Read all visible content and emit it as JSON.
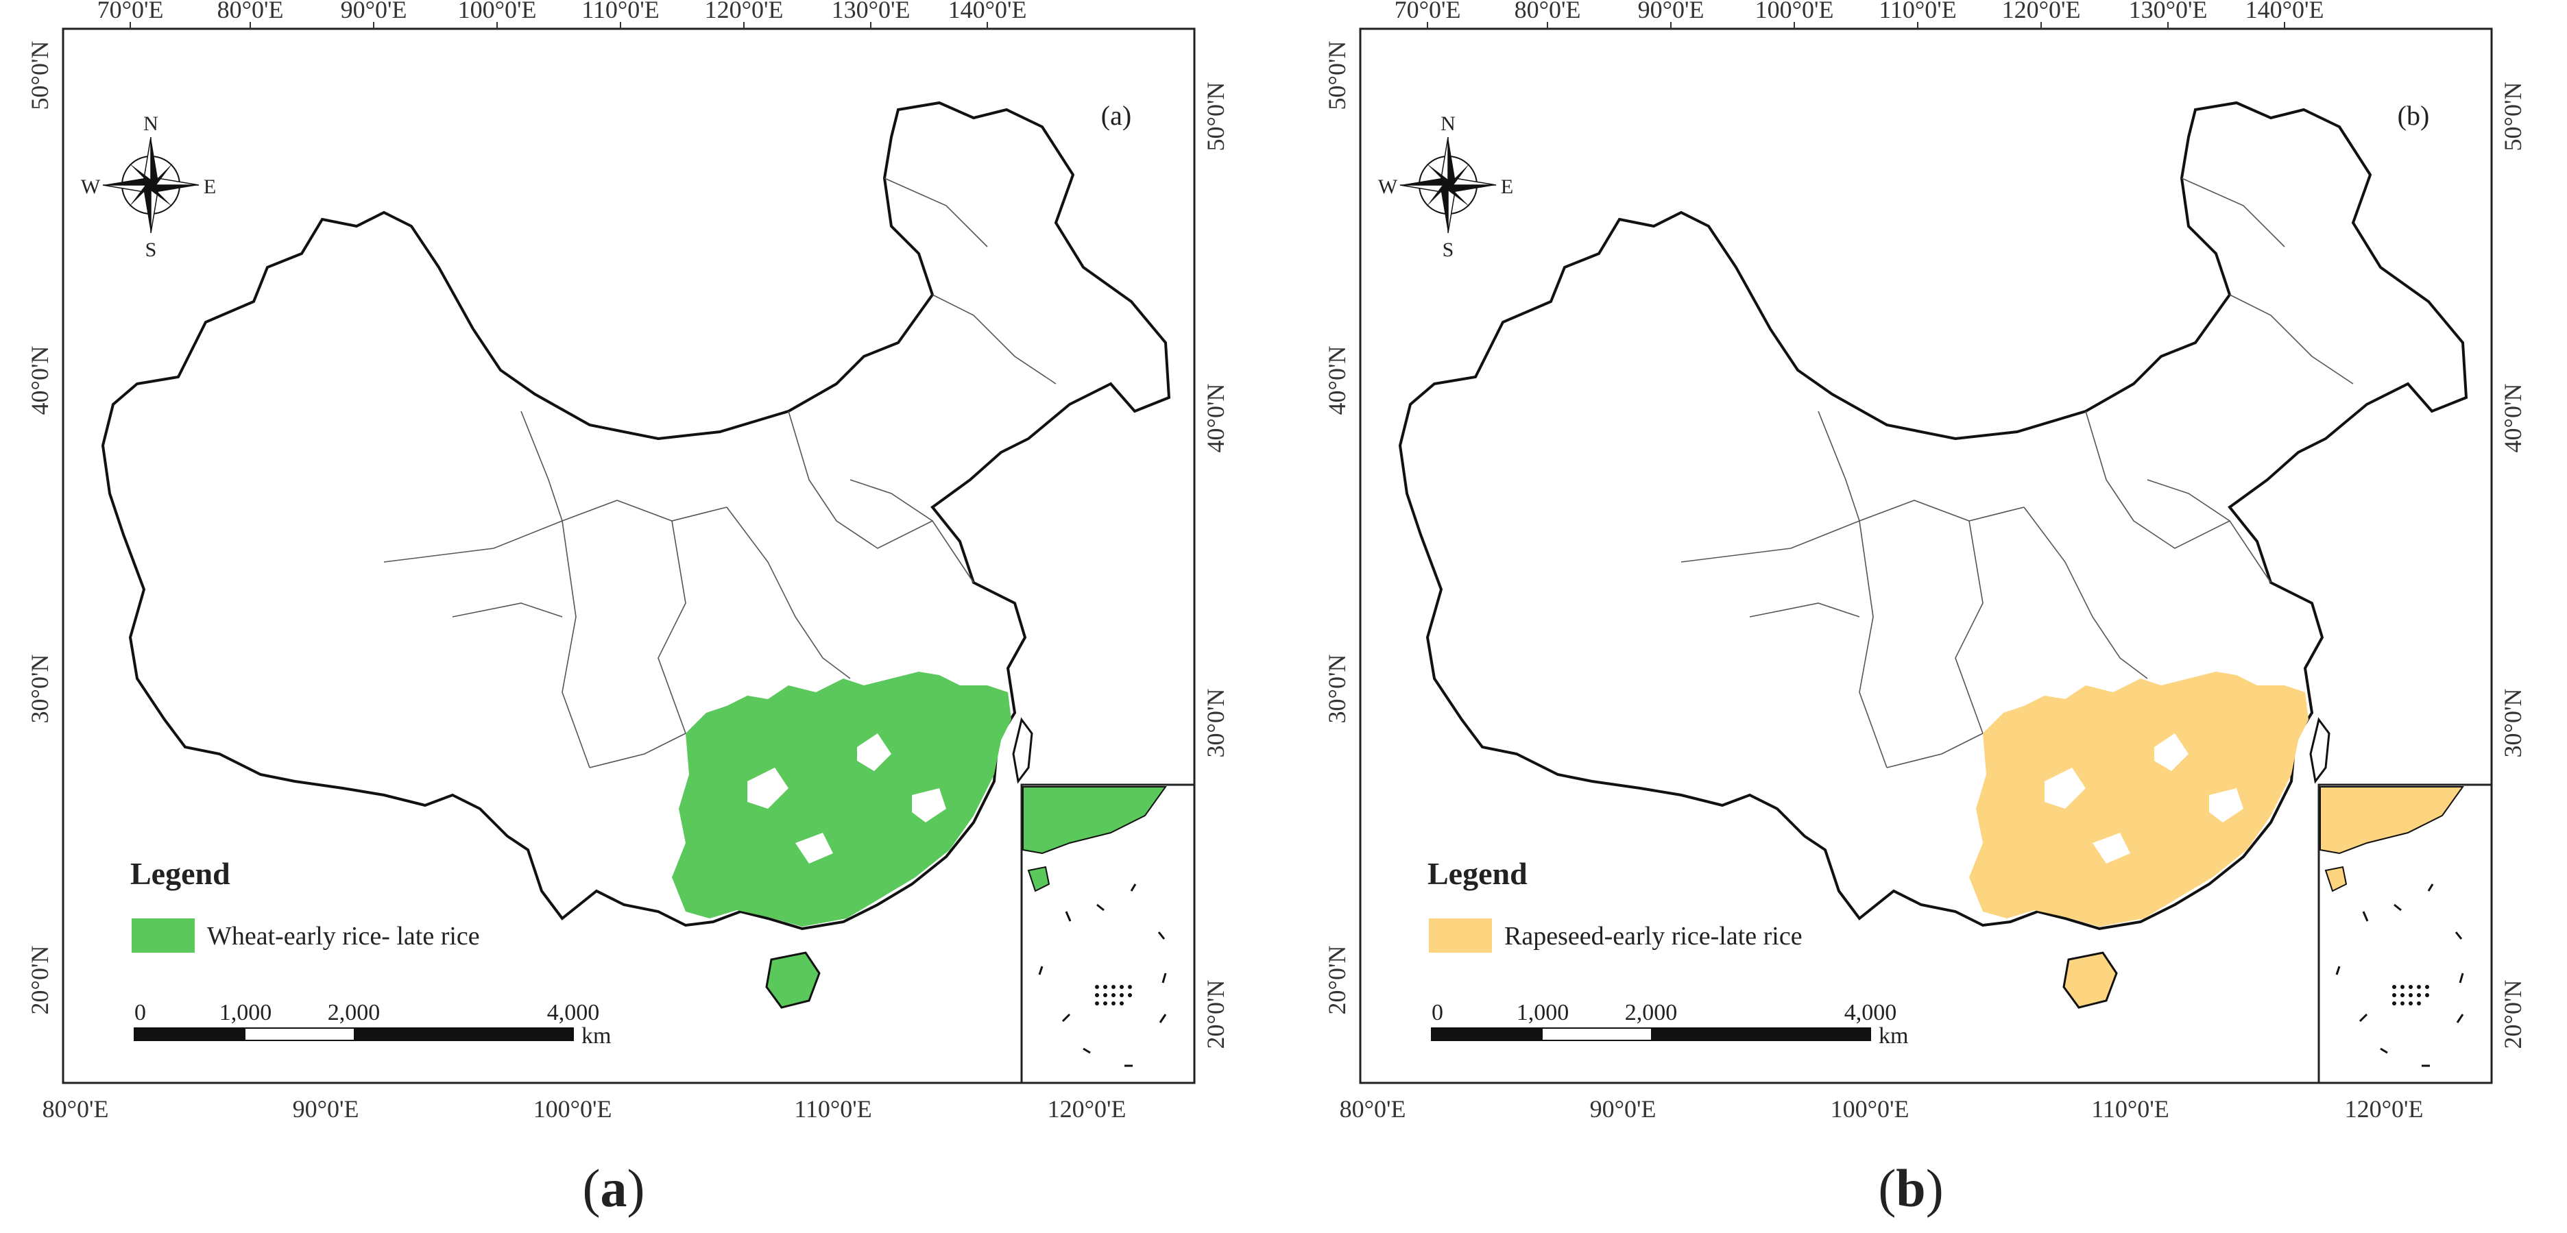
{
  "figure": {
    "panels": [
      {
        "id": "a",
        "panel_label": "(a)",
        "caption": "(a)",
        "legend_title": "Legend",
        "legend_item": "Wheat-early rice- late rice",
        "legend_color": "#5bc85b",
        "fill_color": "#5bc85b"
      },
      {
        "id": "b",
        "panel_label": "(b)",
        "caption": "(b)",
        "legend_title": "Legend",
        "legend_item": "Rapeseed-early rice-late rice",
        "legend_color": "#fdd47f",
        "fill_color": "#fdd47f"
      }
    ],
    "top_ticks": [
      "70°0'E",
      "80°0'E",
      "90°0'E",
      "100°0'E",
      "110°0'E",
      "120°0'E",
      "130°0'E",
      "140°0'E"
    ],
    "bottom_ticks": [
      "80°0'E",
      "90°0'E",
      "100°0'E",
      "110°0'E",
      "120°0'E"
    ],
    "left_ticks": [
      "50°0'N",
      "40°0'N",
      "30°0'N",
      "20°0'N"
    ],
    "right_ticks": [
      "50°0'N",
      "40°0'N",
      "30°0'N",
      "20°0'N"
    ],
    "compass": {
      "n": "N",
      "s": "S",
      "e": "E",
      "w": "W"
    },
    "scale_bar": {
      "labels": [
        "0",
        "1,000",
        "2,000",
        "4,000"
      ],
      "unit": "km"
    }
  }
}
